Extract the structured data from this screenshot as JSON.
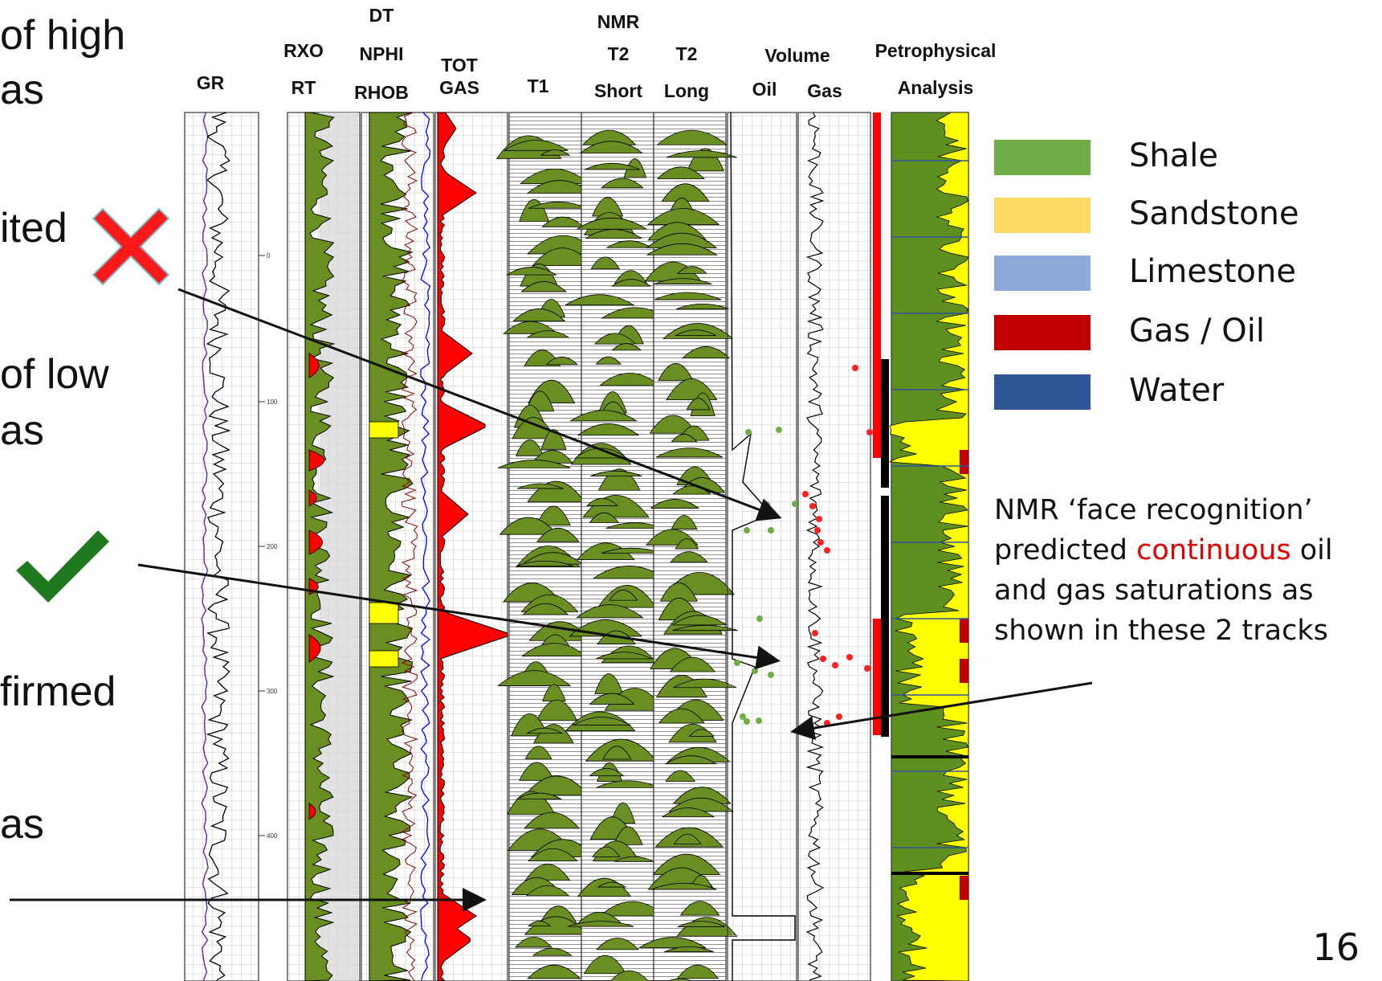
{
  "left_fragments": [
    "of high",
    "as",
    "ited",
    "of low",
    "as",
    "firmed",
    "as"
  ],
  "track_headers": {
    "gr": "GR",
    "rxo": "RXO",
    "rt": "RT",
    "dt": "DT",
    "nphi": "NPHI",
    "rhob": "RHOB",
    "tot": "TOT",
    "gas_tot": "GAS",
    "t1": "T1",
    "nmr": "NMR",
    "t2a": "T2",
    "t2b": "T2",
    "short": "Short",
    "long": "Long",
    "volume": "Volume",
    "oil": "Oil",
    "gas_vol": "Gas",
    "petro": "Petrophysical",
    "analysis": "Analysis"
  },
  "depth_ticks": [
    "0",
    "100",
    "200",
    "300",
    "400"
  ],
  "legend": [
    {
      "label": "Shale",
      "color": "#70ad47"
    },
    {
      "label": "Sandstone",
      "color": "#ffd966"
    },
    {
      "label": "Limestone",
      "color": "#8eaadb"
    },
    {
      "label": "Gas / Oil",
      "color": "#c00000"
    },
    {
      "label": "Water",
      "color": "#2f5597"
    }
  ],
  "note": {
    "part1": "NMR ‘face recognition’ predicted ",
    "highlight": "continuous",
    "part2": " oil and gas saturations as shown in these 2 tracks"
  },
  "page_number": "16",
  "marks": {
    "cross": "red-cross-icon",
    "check": "green-check-icon"
  }
}
